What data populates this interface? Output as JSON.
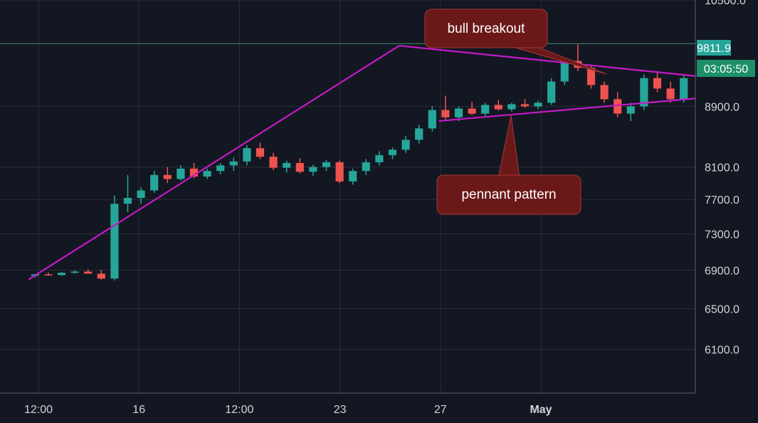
{
  "chart_data": {
    "type": "candlestick",
    "y_scale": "log",
    "ylim": [
      5700,
      10500
    ],
    "y_ticks": [
      "10500.0",
      "8900.0",
      "8100.0",
      "7700.0",
      "7300.0",
      "6900.0",
      "6500.0",
      "6100.0"
    ],
    "x_ticks": [
      {
        "label": "12:00",
        "bold": false
      },
      {
        "label": "16",
        "bold": false
      },
      {
        "label": "12:00",
        "bold": false
      },
      {
        "label": "23",
        "bold": false
      },
      {
        "label": "27",
        "bold": false
      },
      {
        "label": "May",
        "bold": true
      }
    ],
    "last_price": "9811.9",
    "countdown": "03:05:50",
    "annotations": {
      "breakout_label": "bull breakout",
      "pattern_label": "pennant pattern"
    },
    "colors": {
      "background": "#131722",
      "grid": "#2a2e39",
      "up": "#26a69a",
      "down": "#ef5350",
      "trendline": "#c41ac4",
      "callout": "#6b1818",
      "price_tag": "#26a69a"
    },
    "trend_lines": [
      {
        "from": [
          0.0,
          6800
        ],
        "to": [
          28.0,
          9780
        ]
      },
      {
        "from": [
          28.0,
          9780
        ],
        "to": [
          55.0,
          9330
        ]
      },
      {
        "from": [
          31.0,
          8700
        ],
        "to": [
          55.0,
          9010
        ]
      }
    ],
    "candles": [
      [
        6840,
        6860,
        6820,
        6855
      ],
      [
        6855,
        6875,
        6840,
        6848
      ],
      [
        6848,
        6880,
        6840,
        6872
      ],
      [
        6872,
        6900,
        6860,
        6885
      ],
      [
        6885,
        6910,
        6870,
        6862
      ],
      [
        6862,
        6900,
        6800,
        6810
      ],
      [
        6810,
        7750,
        6790,
        7650
      ],
      [
        7650,
        8000,
        7550,
        7720
      ],
      [
        7720,
        7850,
        7650,
        7810
      ],
      [
        7810,
        8050,
        7780,
        8000
      ],
      [
        8000,
        8100,
        7900,
        7950
      ],
      [
        7950,
        8120,
        7930,
        8080
      ],
      [
        8080,
        8150,
        7960,
        7980
      ],
      [
        7980,
        8080,
        7950,
        8050
      ],
      [
        8050,
        8150,
        8010,
        8120
      ],
      [
        8120,
        8220,
        8050,
        8170
      ],
      [
        8170,
        8380,
        8120,
        8340
      ],
      [
        8340,
        8410,
        8200,
        8230
      ],
      [
        8230,
        8280,
        8060,
        8090
      ],
      [
        8090,
        8180,
        8030,
        8150
      ],
      [
        8150,
        8210,
        8020,
        8040
      ],
      [
        8040,
        8130,
        7990,
        8100
      ],
      [
        8100,
        8190,
        8050,
        8160
      ],
      [
        8160,
        8180,
        7900,
        7920
      ],
      [
        7920,
        8080,
        7880,
        8050
      ],
      [
        8050,
        8200,
        8000,
        8160
      ],
      [
        8160,
        8300,
        8120,
        8250
      ],
      [
        8250,
        8350,
        8200,
        8320
      ],
      [
        8320,
        8500,
        8280,
        8450
      ],
      [
        8450,
        8650,
        8400,
        8600
      ],
      [
        8600,
        8900,
        8560,
        8850
      ],
      [
        8850,
        9050,
        8700,
        8750
      ],
      [
        8750,
        8900,
        8700,
        8870
      ],
      [
        8870,
        8960,
        8780,
        8800
      ],
      [
        8800,
        8950,
        8770,
        8920
      ],
      [
        8920,
        8990,
        8840,
        8860
      ],
      [
        8860,
        8950,
        8830,
        8930
      ],
      [
        8930,
        9000,
        8880,
        8900
      ],
      [
        8900,
        8980,
        8860,
        8950
      ],
      [
        8950,
        9300,
        8920,
        9250
      ],
      [
        9250,
        9600,
        9200,
        9550
      ],
      [
        9550,
        9800,
        9400,
        9450
      ],
      [
        9450,
        9500,
        9150,
        9200
      ],
      [
        9200,
        9250,
        8950,
        9000
      ],
      [
        9000,
        9100,
        8750,
        8800
      ],
      [
        8800,
        8950,
        8700,
        8900
      ],
      [
        8900,
        9350,
        8850,
        9300
      ],
      [
        9300,
        9400,
        9100,
        9150
      ],
      [
        9150,
        9250,
        8950,
        9000
      ],
      [
        9000,
        9350,
        8950,
        9300
      ]
    ]
  }
}
